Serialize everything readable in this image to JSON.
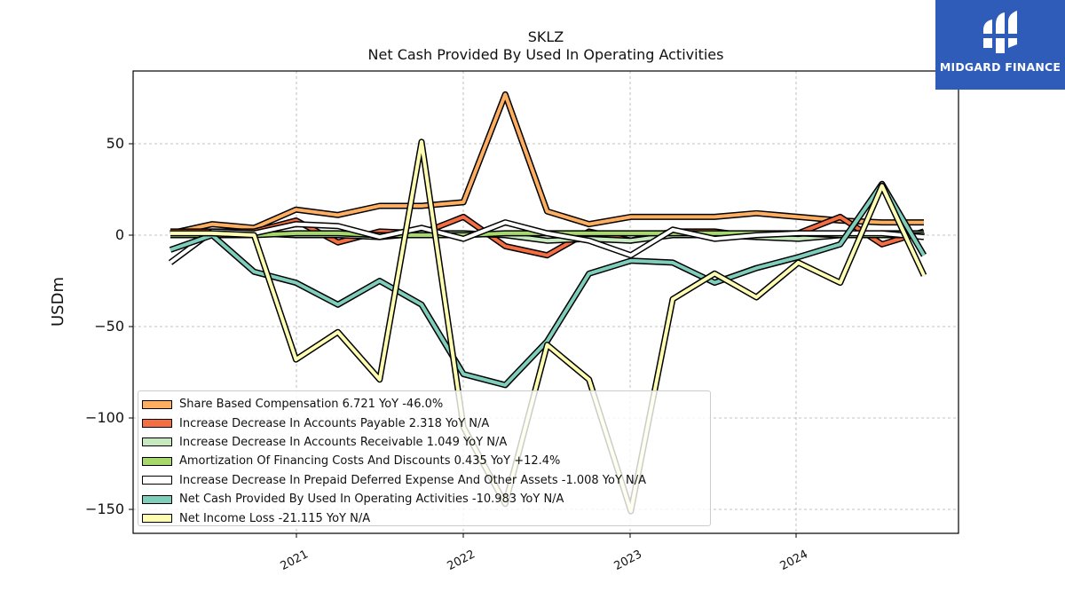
{
  "header": {
    "title": "SKLZ",
    "subtitle": "Net Cash Provided By Used In Operating Activities"
  },
  "brand": {
    "name": "MIDGARD FINANCE",
    "color": "#2e5cb8"
  },
  "chart_data": {
    "type": "line",
    "title": "SKLZ",
    "subtitle": "Net Cash Provided By Used In Operating Activities",
    "ylabel": "USDm",
    "xlabel": "",
    "ylim": [
      -163,
      89
    ],
    "yticks": [
      50,
      0,
      -50,
      -100,
      -150
    ],
    "ytick_labels": [
      "50",
      "0",
      "−50",
      "−100",
      "−150"
    ],
    "xtick_labels": [
      "2021",
      "2022",
      "2023",
      "2024"
    ],
    "xtick_years": [
      2021,
      2022,
      2023,
      2024
    ],
    "grid": true,
    "legend_position": "lower-left",
    "x": [
      "2020-03-31",
      "2020-06-30",
      "2020-09-30",
      "2020-12-31",
      "2021-03-31",
      "2021-06-30",
      "2021-09-30",
      "2021-12-31",
      "2022-03-31",
      "2022-06-30",
      "2022-09-30",
      "2022-12-31",
      "2023-03-31",
      "2023-06-30",
      "2023-09-30",
      "2023-12-31",
      "2024-03-31",
      "2024-06-30",
      "2024-09-30"
    ],
    "series": [
      {
        "name": "Share Based Compensation",
        "legend": "Share Based Compensation  6.721 YoY -46.0%",
        "color": "#fdae61",
        "values": [
          1,
          6,
          4,
          14,
          11,
          16,
          16,
          18,
          77,
          13,
          6,
          10,
          10,
          10,
          12,
          10,
          8,
          7,
          7
        ]
      },
      {
        "name": "Increase Decrease In Accounts Payable",
        "legend": "Increase Decrease In Accounts Payable  2.318 YoY N/A",
        "color": "#f46d43",
        "values": [
          2,
          2,
          2,
          8,
          -4,
          2,
          1,
          10,
          -6,
          -11,
          2,
          -3,
          2,
          2,
          -1,
          1,
          10,
          -5,
          2
        ]
      },
      {
        "name": "Increase Decrease In Accounts Receivable",
        "legend": "Increase Decrease In Accounts Receivable  1.049 YoY N/A",
        "color": "#c7e9c0",
        "values": [
          0,
          1,
          1,
          0,
          0,
          -1,
          1,
          1,
          0,
          -3,
          -2,
          -3,
          0,
          0,
          -1,
          -2,
          0,
          1,
          1
        ]
      },
      {
        "name": "Amortization Of Financing Costs And Discounts",
        "legend": "Amortization Of Financing Costs And Discounts  0.435 YoY +12.4%",
        "color": "#a6d96a",
        "values": [
          0,
          0,
          0,
          1,
          1,
          0,
          0,
          0,
          1,
          1,
          1,
          1,
          1,
          1,
          1,
          1,
          0,
          0,
          0
        ]
      },
      {
        "name": "Increase Decrease In Prepaid Deferred Expense And Other Assets",
        "legend": "Increase Decrease In Prepaid Deferred Expense And Other Assets  -1.008 YoY N/A",
        "color": "#ffffff",
        "values": [
          -15,
          2,
          1,
          6,
          5,
          -1,
          4,
          -2,
          7,
          1,
          -3,
          -11,
          3,
          -2,
          0,
          1,
          1,
          1,
          -1
        ]
      },
      {
        "name": "Net Cash Provided By Used In Operating Activities",
        "legend": "Net Cash Provided By Used In Operating Activities  -10.983 YoY N/A",
        "color": "#7fcdbb",
        "values": [
          -8,
          0,
          -20,
          -26,
          -38,
          -25,
          -38,
          -76,
          -82,
          -58,
          -21,
          -14,
          -15,
          -26,
          -18,
          -12,
          -5,
          28,
          -11
        ]
      },
      {
        "name": "Net Income Loss",
        "legend": "Net Income Loss  -21.115 YoY N/A",
        "color": "#ffffb3",
        "values": [
          1,
          1,
          0,
          -68,
          -53,
          -79,
          51,
          -105,
          -147,
          -60,
          -79,
          -151,
          -35,
          -21,
          -34,
          -15,
          -26,
          27,
          -22
        ]
      }
    ]
  }
}
